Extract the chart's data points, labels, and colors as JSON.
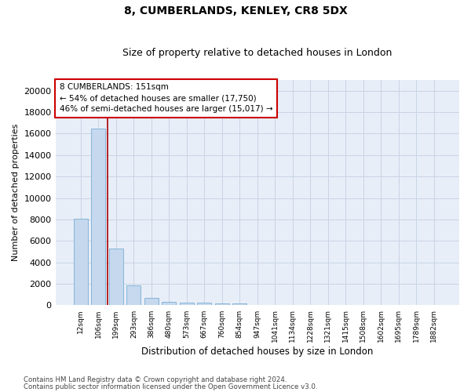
{
  "title1": "8, CUMBERLANDS, KENLEY, CR8 5DX",
  "title2": "Size of property relative to detached houses in London",
  "xlabel": "Distribution of detached houses by size in London",
  "ylabel": "Number of detached properties",
  "categories": [
    "12sqm",
    "106sqm",
    "199sqm",
    "293sqm",
    "386sqm",
    "480sqm",
    "573sqm",
    "667sqm",
    "760sqm",
    "854sqm",
    "947sqm",
    "1041sqm",
    "1134sqm",
    "1228sqm",
    "1321sqm",
    "1415sqm",
    "1508sqm",
    "1602sqm",
    "1695sqm",
    "1789sqm",
    "1882sqm"
  ],
  "values": [
    8100,
    16500,
    5300,
    1850,
    700,
    350,
    270,
    220,
    200,
    150,
    50,
    30,
    15,
    10,
    8,
    5,
    4,
    3,
    2,
    2,
    1
  ],
  "bar_color": "#c5d8ee",
  "bar_edge_color": "#7aaed4",
  "vline_x": 1.5,
  "vline_color": "#aa0000",
  "annotation_title": "8 CUMBERLANDS: 151sqm",
  "annotation_line1": "← 54% of detached houses are smaller (17,750)",
  "annotation_line2": "46% of semi-detached houses are larger (15,017) →",
  "annotation_box_color": "#ffffff",
  "annotation_box_edge": "#cc0000",
  "grid_color": "#c8d4e4",
  "background_color": "#e8eef8",
  "ylim": [
    0,
    21000
  ],
  "yticks": [
    0,
    2000,
    4000,
    6000,
    8000,
    10000,
    12000,
    14000,
    16000,
    18000,
    20000
  ],
  "footer1": "Contains HM Land Registry data © Crown copyright and database right 2024.",
  "footer2": "Contains public sector information licensed under the Open Government Licence v3.0."
}
